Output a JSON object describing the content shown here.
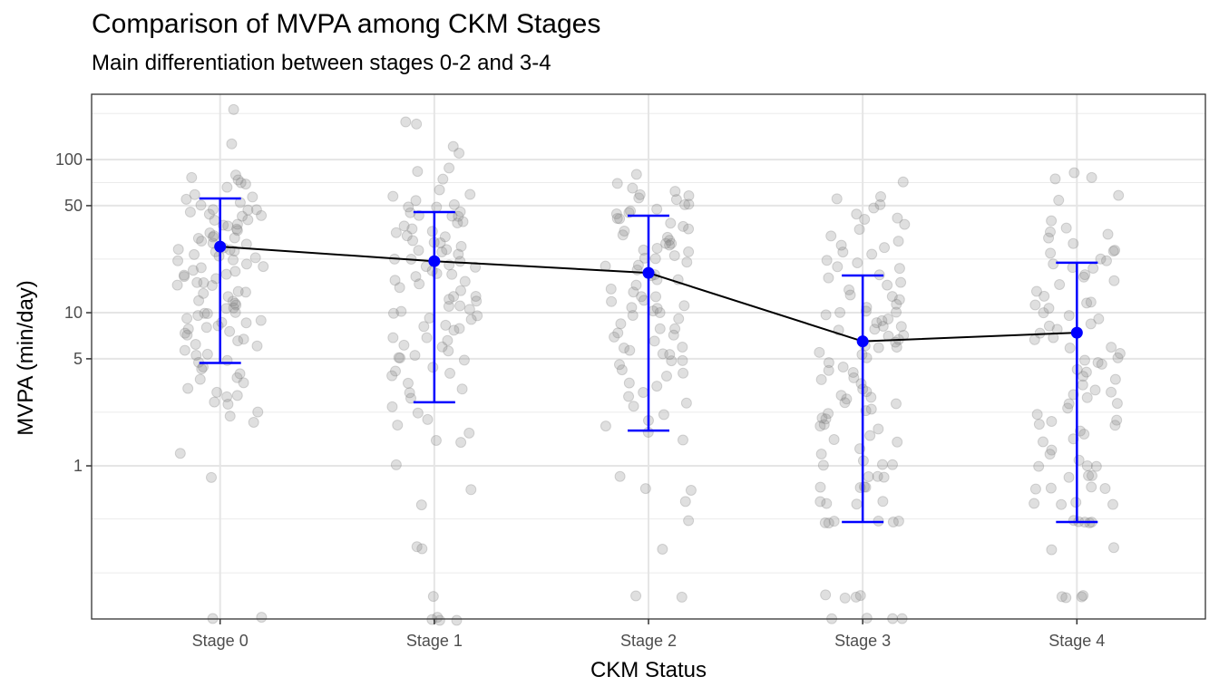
{
  "chart_data": {
    "type": "scatter",
    "title": "Comparison of MVPA among CKM Stages",
    "subtitle": "Main differentiation between stages 0-2 and 3-4",
    "xlabel": "CKM Status",
    "ylabel": "MVPA (min/day)",
    "y_scale": "log10",
    "ylim": [
      0.1,
      267
    ],
    "y_ticks": [
      1,
      5,
      10,
      50,
      100
    ],
    "y_tick_labels": [
      "1",
      "5",
      "10",
      "50",
      "100"
    ],
    "y_minor_gridlines": [
      0.2,
      0.45,
      2.24,
      22.4,
      70.7,
      200
    ],
    "grid": true,
    "categories": [
      "Stage 0",
      "Stage 1",
      "Stage 2",
      "Stage 3",
      "Stage 4"
    ],
    "summary": {
      "name": "Mean with interval",
      "color": "#0000ff",
      "line_color": "#000000",
      "mean": [
        27.0,
        21.7,
        18.2,
        6.5,
        7.4
      ],
      "lower": [
        4.7,
        2.6,
        1.7,
        0.43,
        0.43
      ],
      "upper": [
        55.7,
        45.4,
        43.0,
        17.5,
        21.2
      ]
    },
    "points": {
      "name": "Individual observations (jittered)",
      "color": "#808080",
      "alpha": 0.25,
      "values": [
        [
          210,
          130,
          80,
          78,
          75,
          70,
          68,
          65,
          60,
          58,
          55,
          52,
          50,
          48,
          47,
          46,
          45,
          44,
          43,
          42,
          41,
          40,
          38,
          37,
          36,
          35,
          34,
          33,
          32,
          31,
          30,
          30,
          29,
          28,
          28,
          27,
          26,
          26,
          25,
          25,
          24,
          24,
          23,
          22,
          22,
          21,
          20,
          20,
          19,
          19,
          18,
          18,
          17,
          17,
          16,
          16,
          15,
          15,
          14,
          14,
          13,
          13,
          12,
          12,
          11.5,
          11,
          11,
          10.5,
          10,
          10,
          9.8,
          9.5,
          9.2,
          9,
          8.8,
          8.5,
          8.2,
          8,
          7.8,
          7.5,
          7.2,
          7,
          6.8,
          6.5,
          6.2,
          6,
          5.8,
          5.5,
          5.2,
          5,
          4.8,
          4.5,
          4.3,
          4,
          3.8,
          3.6,
          3.4,
          3.2,
          3,
          2.9,
          2.8,
          2.6,
          2.5,
          2.3,
          2.1,
          1.9,
          1.2,
          0.86,
          0.1,
          0.1
        ],
        [
          180,
          175,
          125,
          110,
          90,
          85,
          75,
          62,
          60,
          58,
          55,
          52,
          50,
          48,
          46,
          45,
          44,
          43,
          42,
          40,
          38,
          36,
          35,
          34,
          33,
          32,
          31,
          30,
          29,
          28,
          27,
          26,
          25,
          25,
          24,
          23,
          22,
          22,
          21,
          20,
          20,
          19,
          18,
          18,
          17,
          16,
          16,
          15,
          15,
          14,
          13,
          13,
          12,
          12,
          11,
          11,
          10.5,
          10,
          10,
          9.5,
          9,
          9,
          8.5,
          8,
          8,
          7.5,
          7,
          7,
          6.5,
          6,
          6,
          5.5,
          5.2,
          5,
          5,
          4.8,
          4.5,
          4.2,
          4,
          3.8,
          3.5,
          3.2,
          3,
          2.8,
          2.4,
          2.2,
          2,
          1.8,
          1.6,
          1.5,
          1.4,
          1,
          0.71,
          0.57,
          0.29,
          0.29,
          0.14,
          0.1,
          0.1,
          0.1,
          0.1
        ],
        [
          80,
          70,
          65,
          62,
          60,
          58,
          56,
          55,
          52,
          50,
          48,
          46,
          45,
          44,
          42,
          40,
          38,
          36,
          35,
          34,
          32,
          31,
          30,
          29,
          28,
          27,
          26,
          25,
          25,
          24,
          23,
          22,
          21,
          20,
          20,
          19,
          18,
          17,
          16,
          16,
          15,
          14,
          14,
          13,
          13,
          12,
          12,
          11,
          11,
          10.5,
          10,
          10,
          9.5,
          9,
          8.5,
          8,
          8,
          7.5,
          7,
          7,
          6.5,
          6,
          6,
          5.8,
          5.5,
          5.2,
          5,
          4.8,
          4.5,
          4.2,
          4,
          3.8,
          3.5,
          3.3,
          3,
          2.8,
          2.6,
          2.4,
          2.2,
          2,
          1.8,
          1.7,
          1.5,
          0.86,
          0.71,
          0.71,
          0.57,
          0.43,
          0.29,
          0.14,
          0.14
        ],
        [
          72,
          58,
          55,
          52,
          48,
          45,
          42,
          40,
          38,
          35,
          32,
          30,
          28,
          26,
          25,
          24,
          22,
          21,
          20,
          19,
          18,
          17,
          16,
          15,
          14,
          13,
          12.5,
          12,
          11.5,
          11,
          10.5,
          10,
          9.8,
          9.5,
          9,
          8.8,
          8.5,
          8.2,
          8,
          7.8,
          7.5,
          7.2,
          7,
          6.8,
          6.5,
          6.2,
          6,
          5.8,
          5.5,
          5.2,
          5,
          4.8,
          4.5,
          4.2,
          4,
          3.8,
          3.6,
          3.4,
          3.2,
          3,
          2.9,
          2.8,
          2.7,
          2.6,
          2.5,
          2.4,
          2.3,
          2.2,
          2.1,
          2,
          1.9,
          1.8,
          1.7,
          1.6,
          1.5,
          1.4,
          1.3,
          1.2,
          1.1,
          1,
          1,
          1,
          0.86,
          0.86,
          0.86,
          0.71,
          0.71,
          0.71,
          0.71,
          0.57,
          0.57,
          0.57,
          0.57,
          0.43,
          0.43,
          0.43,
          0.43,
          0.43,
          0.43,
          0.14,
          0.14,
          0.14,
          0.14,
          0.1,
          0.1,
          0.1,
          0.1
        ],
        [
          80,
          78,
          75,
          58,
          55,
          40,
          36,
          34,
          32,
          30,
          28,
          26,
          25,
          24,
          23,
          22,
          21,
          20,
          19,
          18,
          17,
          16,
          15,
          14,
          13,
          12,
          11.5,
          11,
          10.5,
          10,
          9.5,
          9,
          8.5,
          8,
          7.8,
          7.5,
          7,
          6.5,
          6,
          5.8,
          5.5,
          5.2,
          5,
          4.8,
          4.5,
          4.2,
          4,
          3.8,
          3.6,
          3.4,
          3.2,
          3,
          2.9,
          2.8,
          2.6,
          2.5,
          2.4,
          2.2,
          2,
          2,
          1.9,
          1.8,
          1.7,
          1.6,
          1.5,
          1.4,
          1.3,
          1.2,
          1.1,
          1,
          1,
          1,
          0.86,
          0.86,
          0.86,
          0.71,
          0.71,
          0.71,
          0.71,
          0.57,
          0.57,
          0.57,
          0.57,
          0.43,
          0.43,
          0.43,
          0.43,
          0.43,
          0.29,
          0.29,
          0.14,
          0.14,
          0.14,
          0.14
        ]
      ]
    }
  }
}
